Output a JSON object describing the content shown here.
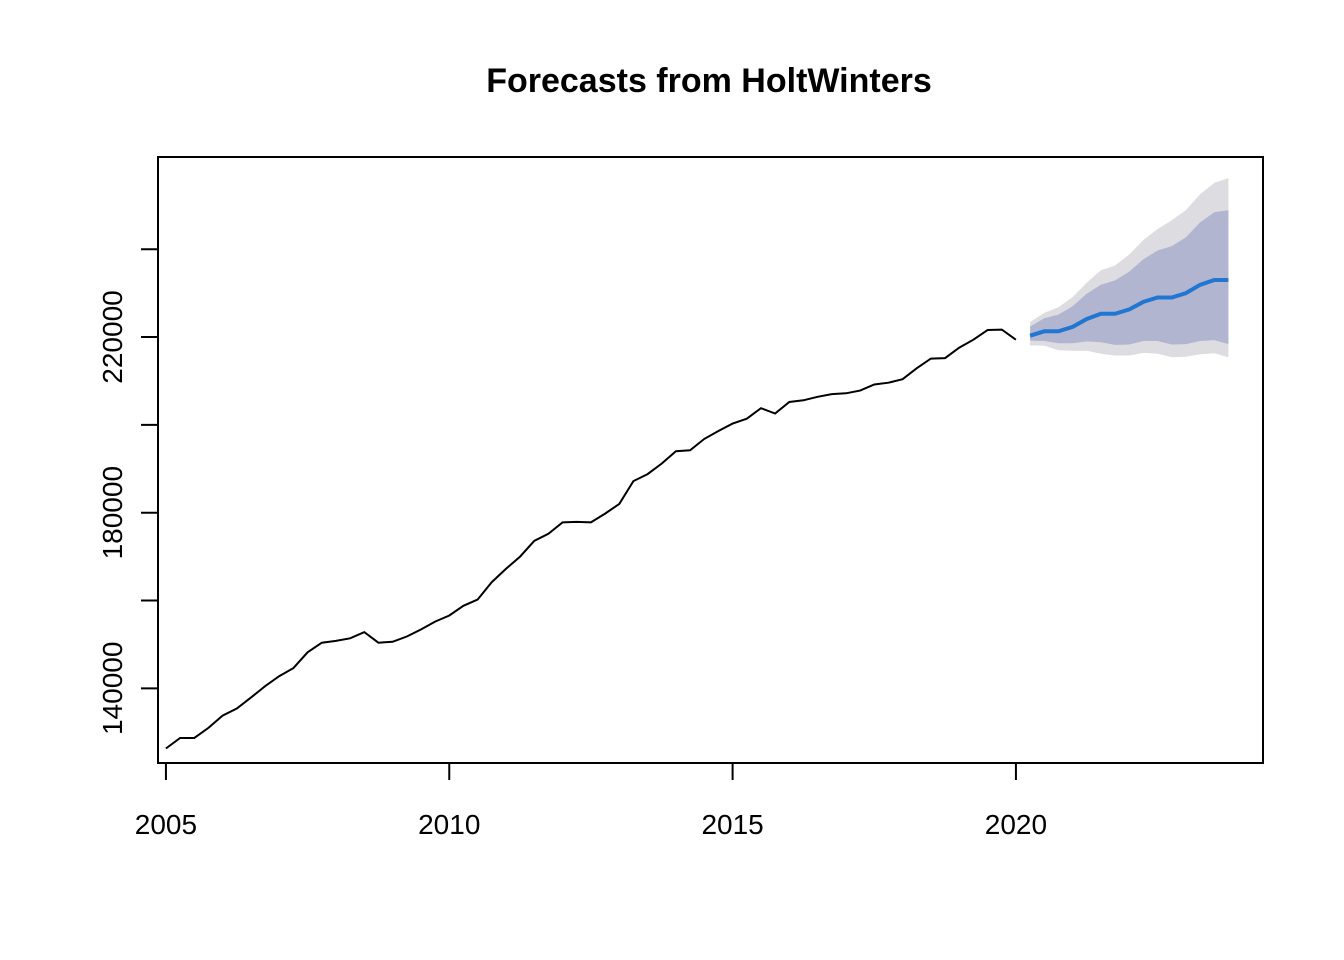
{
  "chart_data": {
    "type": "line",
    "title": "Forecasts from HoltWinters",
    "xlabel": "",
    "ylabel": "",
    "xlim": [
      2004.86,
      2024.36
    ],
    "ylim": [
      123000,
      261000
    ],
    "x_ticks": [
      2005,
      2010,
      2015,
      2020
    ],
    "x_tick_labels": [
      "2005",
      "2010",
      "2015",
      "2020"
    ],
    "y_ticks": [
      140000,
      160000,
      180000,
      200000,
      220000,
      240000
    ],
    "y_tick_labels": [
      "140000",
      "",
      "180000",
      "",
      "220000",
      ""
    ],
    "grid": false,
    "legend": "none",
    "colors": {
      "observed": "#000000",
      "forecast_mean": "#2176d1",
      "interval_80": "#b1b5d0",
      "interval_95": "#dcdce1"
    },
    "series": [
      {
        "name": "",
        "role": "observed",
        "x": [
          2005.0,
          2005.25,
          2005.5,
          2005.75,
          2006.0,
          2006.25,
          2006.5,
          2006.75,
          2007.0,
          2007.25,
          2007.5,
          2007.75,
          2008.0,
          2008.25,
          2008.5,
          2008.75,
          2009.0,
          2009.25,
          2009.5,
          2009.75,
          2010.0,
          2010.25,
          2010.5,
          2010.75,
          2011.0,
          2011.25,
          2011.5,
          2011.75,
          2012.0,
          2012.25,
          2012.5,
          2012.75,
          2013.0,
          2013.25,
          2013.5,
          2013.75,
          2014.0,
          2014.25,
          2014.5,
          2014.75,
          2015.0,
          2015.25,
          2015.5,
          2015.75,
          2016.0,
          2016.25,
          2016.5,
          2016.75,
          2017.0,
          2017.25,
          2017.5,
          2017.75,
          2018.0,
          2018.25,
          2018.5,
          2018.75,
          2019.0,
          2019.25,
          2019.5,
          2019.75,
          2020.0
        ],
        "values": [
          126300,
          128700,
          128700,
          131000,
          133800,
          135400,
          137900,
          140500,
          142800,
          144600,
          148200,
          150400,
          150800,
          151400,
          152800,
          150400,
          150600,
          151800,
          153400,
          155200,
          156600,
          158800,
          160200,
          164200,
          167200,
          170000,
          173600,
          175200,
          177800,
          177900,
          177800,
          179800,
          182000,
          187200,
          188800,
          191200,
          194000,
          194200,
          196800,
          198600,
          200300,
          201400,
          203800,
          202600,
          205200,
          205600,
          206400,
          207000,
          207200,
          207800,
          209200,
          209600,
          210400,
          212900,
          215100,
          215200,
          217600,
          219400,
          221600,
          221700,
          219400
        ]
      },
      {
        "name": "",
        "role": "forecast_mean",
        "x": [
          2020.25,
          2020.5,
          2020.75,
          2021.0,
          2021.25,
          2021.5,
          2021.75,
          2022.0,
          2022.25,
          2022.5,
          2022.75,
          2023.0,
          2023.25,
          2023.5,
          2023.75
        ],
        "values": [
          220300,
          221300,
          221300,
          222300,
          224100,
          225300,
          225300,
          226300,
          228000,
          229000,
          229000,
          230000,
          231900,
          233000,
          233000
        ],
        "lower_80": [
          219200,
          219100,
          218600,
          218600,
          219000,
          218800,
          218200,
          218300,
          219100,
          219100,
          218300,
          218400,
          219100,
          219300,
          218400
        ],
        "upper_80": [
          222400,
          224300,
          225100,
          227000,
          229900,
          231900,
          232900,
          234900,
          237700,
          239700,
          240700,
          242700,
          246100,
          248400,
          248900
        ],
        "lower_95": [
          218100,
          218000,
          217000,
          216900,
          216900,
          216200,
          215800,
          215800,
          216400,
          216200,
          215400,
          215500,
          216100,
          216300,
          215400
        ],
        "upper_95": [
          223400,
          225500,
          226800,
          229100,
          232400,
          235200,
          236300,
          238800,
          242100,
          244600,
          246600,
          248900,
          252500,
          255100,
          256200
        ]
      }
    ]
  }
}
